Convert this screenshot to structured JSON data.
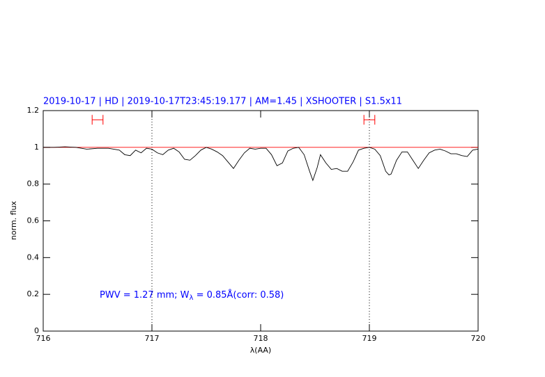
{
  "chart_data": {
    "type": "line",
    "title": "2019-10-17 | HD | 2019-10-17T23:45:19.177 | AM=1.45 | XSHOOTER | S1.5x11",
    "annotation": {
      "parts": [
        "PWV = 1.27 mm; W",
        "λ",
        " = 0.85Å(corr: 0.58)"
      ]
    },
    "x_label": "λ(AA)",
    "y_label": "norm. flux",
    "xlim": [
      716,
      720
    ],
    "ylim": [
      0,
      1.2
    ],
    "xticks": [
      716,
      717,
      718,
      719,
      720
    ],
    "yticks": [
      0,
      0.2,
      0.4,
      0.6,
      0.8,
      1,
      1.2
    ],
    "x": [
      716.0,
      716.1,
      716.2,
      716.3,
      716.4,
      716.5,
      716.6,
      716.7,
      716.75,
      716.8,
      716.85,
      716.9,
      716.95,
      717.0,
      717.05,
      717.1,
      717.15,
      717.2,
      717.25,
      717.3,
      717.35,
      717.4,
      717.45,
      717.5,
      717.55,
      717.6,
      717.65,
      717.7,
      717.75,
      717.8,
      717.85,
      717.9,
      717.95,
      718.0,
      718.05,
      718.1,
      718.15,
      718.2,
      718.25,
      718.3,
      718.35,
      718.4,
      718.45,
      718.48,
      718.52,
      718.55,
      718.6,
      718.65,
      718.7,
      718.75,
      718.8,
      718.85,
      718.9,
      718.95,
      719.0,
      719.05,
      719.1,
      719.15,
      719.18,
      719.2,
      719.25,
      719.3,
      719.35,
      719.4,
      719.45,
      719.5,
      719.55,
      719.6,
      719.65,
      719.7,
      719.75,
      719.8,
      719.85,
      719.9,
      719.95,
      720.0
    ],
    "series": [
      {
        "color": "#000000",
        "values": [
          1.0,
          1.0,
          1.003,
          1.0,
          0.99,
          0.995,
          0.995,
          0.985,
          0.96,
          0.955,
          0.985,
          0.97,
          0.995,
          0.99,
          0.97,
          0.96,
          0.985,
          0.995,
          0.975,
          0.935,
          0.93,
          0.955,
          0.985,
          1.0,
          0.99,
          0.975,
          0.955,
          0.92,
          0.885,
          0.93,
          0.97,
          0.995,
          0.99,
          0.995,
          0.995,
          0.96,
          0.9,
          0.915,
          0.98,
          0.995,
          1.0,
          0.96,
          0.87,
          0.82,
          0.89,
          0.96,
          0.915,
          0.88,
          0.885,
          0.87,
          0.87,
          0.92,
          0.985,
          0.995,
          1.0,
          0.99,
          0.955,
          0.87,
          0.85,
          0.855,
          0.93,
          0.975,
          0.975,
          0.93,
          0.885,
          0.93,
          0.97,
          0.985,
          0.99,
          0.98,
          0.965,
          0.965,
          0.955,
          0.95,
          0.985,
          0.99
        ]
      }
    ],
    "reference_line": {
      "y": 1,
      "color": "#ff0000"
    },
    "vlines": {
      "x": [
        717,
        719
      ],
      "color": "#000000"
    },
    "ranges": [
      {
        "x": [
          716.45,
          716.55
        ],
        "y": 1.15
      },
      {
        "x": [
          718.95,
          719.05
        ],
        "y": 1.15
      }
    ],
    "range_color": "#ff0000"
  }
}
